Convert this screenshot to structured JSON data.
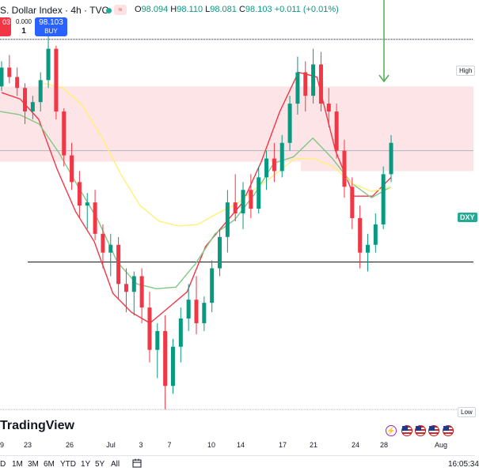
{
  "header": {
    "title": "S. Dollar Index · 4h · TVC",
    "badge": "≈",
    "ohlc": {
      "o_label": "O",
      "o": "98.094",
      "h_label": "H",
      "h": "98.110",
      "l_label": "L",
      "l": "98.081",
      "c_label": "C",
      "c": "98.103",
      "change": "+0.011 (+0.01%)"
    }
  },
  "trade": {
    "sell_price": "03",
    "spread": "0.000",
    "quantity": "1",
    "buy_price": "98.103",
    "buy_label": "BUY"
  },
  "price_tags": {
    "high": "High",
    "low": "Low",
    "symbol": "DXY"
  },
  "logo": "TradingView",
  "x_ticks": [
    {
      "label": "9"
    },
    {
      "label": "23"
    },
    {
      "label": "26"
    },
    {
      "label": "Jul"
    },
    {
      "label": "3"
    },
    {
      "label": "7"
    },
    {
      "label": "10"
    },
    {
      "label": "14"
    },
    {
      "label": "17"
    },
    {
      "label": "21"
    },
    {
      "label": "24"
    },
    {
      "label": "28"
    },
    {
      "label": "Aug"
    }
  ],
  "timeframes": [
    "D",
    "1M",
    "3M",
    "6M",
    "YTD",
    "1Y",
    "5Y",
    "All"
  ],
  "clock": "16:05:34",
  "colors": {
    "up": "#089981",
    "down": "#f23645",
    "zone": "#fde4e6",
    "ma_fast": "#f23645",
    "ma_mid": "#81c784",
    "ma_slow": "#fff176",
    "arrow": "#4caf50"
  },
  "chart_data": {
    "type": "candlestick",
    "timeframe": "4h",
    "symbol": "DXY",
    "y_range": [
      96.35,
      98.9
    ],
    "levels": {
      "high": 98.76,
      "low": 96.4,
      "mid": 97.34,
      "upper": 98.05
    },
    "zones": [
      {
        "from": 97.98,
        "to": 98.46
      },
      {
        "from": 97.92,
        "to": 98.02
      }
    ],
    "series": [
      {
        "name": "MA fast",
        "values": [
          98.42,
          98.38,
          98.25,
          97.93,
          97.66,
          97.47,
          97.14,
          97.02,
          96.95,
          97.05,
          97.15,
          97.44,
          97.58,
          97.72,
          97.98,
          98.3,
          98.55,
          98.52,
          98.05,
          97.76,
          97.76,
          97.88
        ]
      },
      {
        "name": "MA mid",
        "values": [
          98.3,
          98.28,
          98.22,
          98.04,
          97.82,
          97.61,
          97.34,
          97.2,
          97.17,
          97.18,
          97.33,
          97.52,
          97.61,
          97.77,
          97.97,
          98.01,
          98.13,
          98.0,
          97.84,
          97.75,
          97.82
        ]
      },
      {
        "name": "MA slow",
        "values": [
          98.48,
          98.45,
          98.34,
          98.14,
          97.9,
          97.7,
          97.6,
          97.57,
          97.58,
          97.65,
          97.71,
          97.81,
          97.9,
          98.0,
          98.0,
          97.95,
          97.84,
          97.79,
          97.82
        ]
      }
    ],
    "candles": [
      [
        98.46,
        98.62,
        98.43,
        98.58
      ],
      [
        98.58,
        98.66,
        98.48,
        98.52
      ],
      [
        98.52,
        98.58,
        98.4,
        98.45
      ],
      [
        98.45,
        98.48,
        98.22,
        98.3
      ],
      [
        98.3,
        98.4,
        98.25,
        98.36
      ],
      [
        98.36,
        98.55,
        98.3,
        98.5
      ],
      [
        98.5,
        98.78,
        98.45,
        98.7
      ],
      [
        98.7,
        98.72,
        98.25,
        98.3
      ],
      [
        98.3,
        98.32,
        97.95,
        98.02
      ],
      [
        98.02,
        98.1,
        97.8,
        97.85
      ],
      [
        97.85,
        97.92,
        97.62,
        97.7
      ],
      [
        97.7,
        97.78,
        97.55,
        97.72
      ],
      [
        97.72,
        97.8,
        97.48,
        97.52
      ],
      [
        97.52,
        97.58,
        97.3,
        97.4
      ],
      [
        97.4,
        97.52,
        97.25,
        97.45
      ],
      [
        97.45,
        97.5,
        97.1,
        97.2
      ],
      [
        97.2,
        97.3,
        97.02,
        97.15
      ],
      [
        97.15,
        97.28,
        97.0,
        97.25
      ],
      [
        97.25,
        97.3,
        96.95,
        97.05
      ],
      [
        97.05,
        97.15,
        96.7,
        96.78
      ],
      [
        96.78,
        96.95,
        96.6,
        96.9
      ],
      [
        96.9,
        97.0,
        96.4,
        96.55
      ],
      [
        96.55,
        96.85,
        96.5,
        96.8
      ],
      [
        96.8,
        97.05,
        96.7,
        96.98
      ],
      [
        96.98,
        97.2,
        96.9,
        97.1
      ],
      [
        97.1,
        97.25,
        96.88,
        96.95
      ],
      [
        96.95,
        97.12,
        96.9,
        97.08
      ],
      [
        97.08,
        97.35,
        97.02,
        97.3
      ],
      [
        97.3,
        97.55,
        97.25,
        97.5
      ],
      [
        97.5,
        97.8,
        97.4,
        97.72
      ],
      [
        97.72,
        97.9,
        97.6,
        97.65
      ],
      [
        97.65,
        97.85,
        97.55,
        97.8
      ],
      [
        97.8,
        97.9,
        97.62,
        97.68
      ],
      [
        97.68,
        97.95,
        97.65,
        97.88
      ],
      [
        97.88,
        98.05,
        97.8,
        98.0
      ],
      [
        98.0,
        98.1,
        97.85,
        97.92
      ],
      [
        97.92,
        98.15,
        97.88,
        98.1
      ],
      [
        98.1,
        98.4,
        98.05,
        98.35
      ],
      [
        98.35,
        98.65,
        98.28,
        98.55
      ],
      [
        98.55,
        98.62,
        98.3,
        98.4
      ],
      [
        98.4,
        98.7,
        98.35,
        98.6
      ],
      [
        98.6,
        98.68,
        98.3,
        98.35
      ],
      [
        98.35,
        98.45,
        98.2,
        98.3
      ],
      [
        98.3,
        98.35,
        98.0,
        98.05
      ],
      [
        98.05,
        98.12,
        97.75,
        97.82
      ],
      [
        97.82,
        97.88,
        97.55,
        97.62
      ],
      [
        97.62,
        97.7,
        97.3,
        97.4
      ],
      [
        97.4,
        97.52,
        97.28,
        97.45
      ],
      [
        97.45,
        97.65,
        97.4,
        97.58
      ],
      [
        97.58,
        97.95,
        97.55,
        97.9
      ],
      [
        97.9,
        98.15,
        97.85,
        98.1
      ]
    ]
  }
}
